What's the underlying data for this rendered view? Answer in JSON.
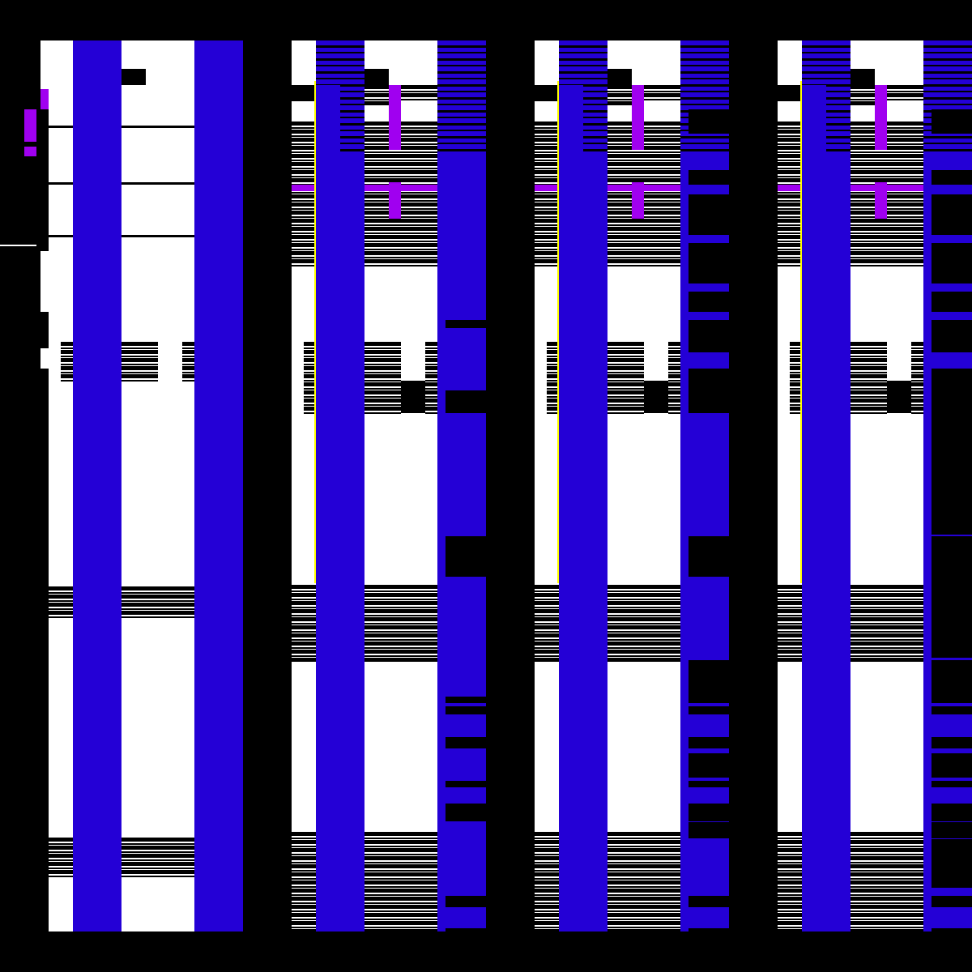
{
  "colors": {
    "background": "#000000",
    "white": "#ffffff",
    "blue": "#2400d6",
    "purple": "#a000f0",
    "yellow": "#ffff00"
  },
  "panels": [
    {
      "name": "panel-1"
    },
    {
      "name": "panel-2"
    },
    {
      "name": "panel-3"
    },
    {
      "name": "panel-4"
    }
  ]
}
